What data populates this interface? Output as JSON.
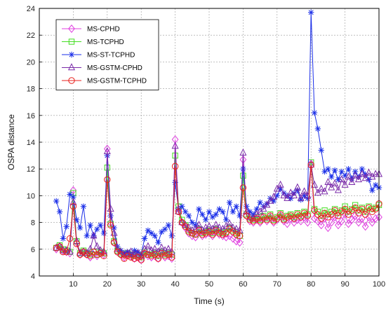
{
  "chart_data": {
    "type": "line",
    "xlabel": "Time (s)",
    "ylabel": "OSPA distance",
    "xlim": [
      0,
      100
    ],
    "ylim": [
      4,
      24
    ],
    "xticks": [
      10,
      20,
      30,
      40,
      50,
      60,
      70,
      80,
      90,
      100
    ],
    "yticks": [
      4,
      6,
      8,
      10,
      12,
      14,
      16,
      18,
      20,
      22,
      24
    ],
    "grid": true,
    "legend_position": "top-left",
    "x": [
      5,
      6,
      7,
      8,
      9,
      10,
      11,
      12,
      13,
      14,
      15,
      16,
      17,
      18,
      19,
      20,
      21,
      22,
      23,
      24,
      25,
      26,
      27,
      28,
      29,
      30,
      31,
      32,
      33,
      34,
      35,
      36,
      37,
      38,
      39,
      40,
      41,
      42,
      43,
      44,
      45,
      46,
      47,
      48,
      49,
      50,
      51,
      52,
      53,
      54,
      55,
      56,
      57,
      58,
      59,
      60,
      61,
      62,
      63,
      64,
      65,
      66,
      67,
      68,
      69,
      70,
      71,
      72,
      73,
      74,
      75,
      76,
      77,
      78,
      79,
      80,
      81,
      82,
      83,
      84,
      85,
      86,
      87,
      88,
      89,
      90,
      91,
      92,
      93,
      94,
      95,
      96,
      97,
      98,
      99,
      100
    ],
    "series": [
      {
        "name": "MS-CPHD",
        "color": "#e040e0",
        "marker": "diamond",
        "values": [
          6.0,
          6.2,
          5.9,
          5.8,
          5.7,
          10.4,
          6.5,
          5.6,
          5.8,
          5.6,
          5.4,
          5.6,
          5.5,
          5.7,
          5.6,
          13.5,
          8.0,
          6.5,
          5.8,
          5.6,
          5.4,
          5.6,
          5.5,
          5.3,
          5.4,
          5.2,
          5.6,
          5.5,
          5.4,
          5.5,
          5.3,
          5.6,
          5.4,
          5.5,
          5.3,
          14.2,
          9.0,
          8.0,
          7.6,
          7.2,
          7.0,
          6.9,
          7.3,
          7.0,
          7.1,
          7.2,
          7.0,
          7.3,
          7.1,
          7.0,
          6.9,
          7.0,
          6.8,
          6.6,
          6.5,
          12.7,
          8.5,
          8.1,
          8.0,
          8.2,
          8.0,
          8.3,
          8.1,
          8.4,
          8.0,
          8.2,
          8.5,
          8.1,
          7.9,
          8.3,
          8.0,
          8.2,
          8.1,
          8.4,
          8.0,
          12.4,
          8.3,
          8.1,
          7.8,
          8.3,
          7.6,
          8.0,
          8.4,
          7.8,
          8.1,
          8.6,
          7.9,
          8.2,
          8.5,
          8.0,
          8.3,
          7.7,
          8.4,
          8.0,
          8.3,
          8.4
        ]
      },
      {
        "name": "MS-TCPHD",
        "color": "#44dd22",
        "marker": "square",
        "values": [
          6.1,
          6.3,
          6.0,
          5.9,
          5.8,
          10.2,
          6.6,
          5.7,
          5.9,
          5.7,
          5.6,
          5.8,
          5.6,
          5.8,
          5.7,
          12.1,
          7.9,
          6.6,
          5.9,
          5.7,
          5.6,
          5.7,
          5.6,
          5.5,
          5.6,
          5.4,
          5.8,
          5.6,
          5.6,
          5.7,
          5.5,
          5.8,
          5.6,
          5.7,
          5.6,
          13.0,
          9.2,
          8.2,
          7.8,
          7.4,
          7.2,
          7.1,
          7.5,
          7.2,
          7.3,
          7.4,
          7.2,
          7.5,
          7.3,
          7.2,
          7.3,
          7.6,
          7.4,
          7.2,
          7.0,
          11.5,
          8.6,
          8.3,
          8.2,
          8.4,
          8.2,
          8.5,
          8.3,
          8.6,
          8.2,
          8.4,
          8.7,
          8.3,
          8.5,
          8.6,
          8.4,
          8.7,
          8.5,
          8.8,
          8.6,
          12.5,
          9.0,
          8.8,
          8.5,
          8.9,
          8.6,
          8.8,
          9.0,
          8.7,
          8.9,
          9.2,
          8.8,
          9.0,
          9.3,
          8.9,
          9.1,
          8.8,
          9.2,
          9.0,
          9.1,
          9.3
        ]
      },
      {
        "name": "MS-ST-TCPHD",
        "color": "#1a2ee8",
        "marker": "star",
        "values": [
          9.6,
          8.8,
          6.8,
          7.7,
          10.1,
          9.9,
          8.2,
          7.6,
          9.2,
          7.0,
          7.8,
          7.0,
          7.5,
          7.8,
          7.2,
          13.0,
          8.5,
          7.6,
          6.2,
          5.9,
          5.7,
          5.8,
          5.6,
          5.9,
          5.8,
          5.6,
          6.8,
          7.4,
          7.2,
          7.0,
          6.5,
          7.3,
          7.5,
          7.8,
          7.0,
          11.0,
          9.0,
          9.2,
          8.8,
          8.5,
          8.0,
          7.8,
          9.0,
          8.6,
          8.2,
          8.8,
          8.4,
          8.6,
          9.0,
          8.8,
          8.2,
          9.5,
          8.8,
          9.2,
          8.5,
          12.0,
          9.2,
          8.8,
          8.6,
          9.0,
          9.5,
          9.2,
          9.4,
          9.8,
          9.6,
          10.0,
          10.5,
          10.2,
          10.0,
          9.8,
          10.2,
          10.4,
          9.7,
          10.0,
          9.8,
          23.7,
          16.2,
          15.0,
          13.4,
          11.8,
          12.0,
          11.4,
          11.9,
          11.2,
          11.8,
          11.5,
          12.0,
          11.3,
          11.8,
          11.4,
          12.0,
          11.6,
          11.2,
          10.4,
          10.8,
          10.6
        ]
      },
      {
        "name": "MS-GSTM-CPHD",
        "color": "#7a2aa8",
        "marker": "triangle",
        "values": [
          6.1,
          6.2,
          5.9,
          5.9,
          5.8,
          9.5,
          6.6,
          5.7,
          5.8,
          5.7,
          6.0,
          7.0,
          6.2,
          5.9,
          5.8,
          13.3,
          9.0,
          7.2,
          6.0,
          5.8,
          5.6,
          5.7,
          5.8,
          5.6,
          5.7,
          5.5,
          6.0,
          6.2,
          5.9,
          6.0,
          5.8,
          6.1,
          5.9,
          6.0,
          5.8,
          13.7,
          8.8,
          8.0,
          7.8,
          7.6,
          7.4,
          7.5,
          7.8,
          7.4,
          7.6,
          7.7,
          7.5,
          7.8,
          7.6,
          7.5,
          7.7,
          7.9,
          7.6,
          7.5,
          7.4,
          13.2,
          8.8,
          8.4,
          8.3,
          8.6,
          8.8,
          9.0,
          9.3,
          9.6,
          9.9,
          10.5,
          10.8,
          10.0,
          9.8,
          10.2,
          10.0,
          10.6,
          9.8,
          10.3,
          10.0,
          12.3,
          10.8,
          10.2,
          10.5,
          10.3,
          11.0,
          10.6,
          10.9,
          10.4,
          11.2,
          10.8,
          11.4,
          11.0,
          11.5,
          11.2,
          11.6,
          11.3,
          11.7,
          11.4,
          11.6,
          11.6
        ]
      },
      {
        "name": "MS-GSTM-TCPHD",
        "color": "#e8201c",
        "marker": "circle",
        "values": [
          6.1,
          6.2,
          5.8,
          5.8,
          6.8,
          9.2,
          6.4,
          5.6,
          5.8,
          5.6,
          5.5,
          5.8,
          5.6,
          5.7,
          5.5,
          11.2,
          7.8,
          6.5,
          5.8,
          5.6,
          5.3,
          5.5,
          5.4,
          5.3,
          5.4,
          5.2,
          5.7,
          5.6,
          5.5,
          5.6,
          5.3,
          5.7,
          5.5,
          5.6,
          5.4,
          12.2,
          8.8,
          8.0,
          7.7,
          7.3,
          7.2,
          7.1,
          7.4,
          7.1,
          7.2,
          7.3,
          7.1,
          7.4,
          7.2,
          7.1,
          7.2,
          7.5,
          7.3,
          7.1,
          7.0,
          10.6,
          8.5,
          8.2,
          8.1,
          8.3,
          8.1,
          8.4,
          8.2,
          8.5,
          8.1,
          8.3,
          8.6,
          8.2,
          8.4,
          8.5,
          8.3,
          8.6,
          8.4,
          8.7,
          8.5,
          12.3,
          8.9,
          8.6,
          8.3,
          8.7,
          8.4,
          8.6,
          8.9,
          8.5,
          8.8,
          9.0,
          8.6,
          8.9,
          9.1,
          8.7,
          9.0,
          8.6,
          9.1,
          8.8,
          9.0,
          9.4
        ]
      }
    ]
  }
}
